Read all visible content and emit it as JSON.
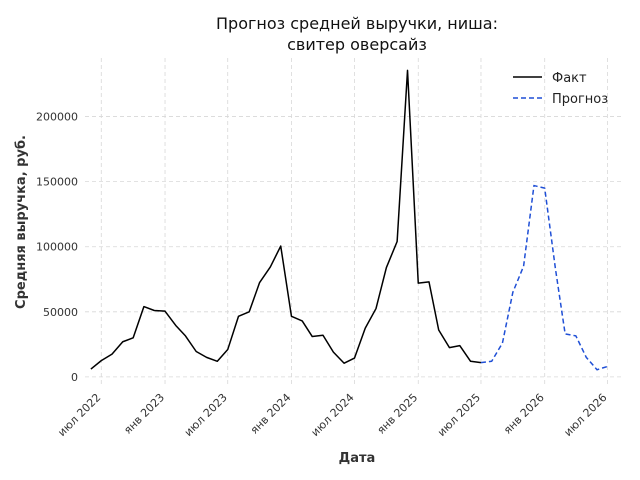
{
  "chart_data": {
    "type": "line",
    "title_line1": "Прогноз средней выручки, ниша:",
    "title_line2": "свитер оверсайз",
    "xlabel": "Дата",
    "ylabel": "Средняя выручка, руб.",
    "ylim": [
      -7000,
      245000
    ],
    "yticks": [
      0,
      50000,
      100000,
      150000,
      200000
    ],
    "xlim": [
      "2022-05-15",
      "2026-08-15"
    ],
    "xticks": [
      {
        "date": "2022-07-01",
        "label": "июл 2022"
      },
      {
        "date": "2023-01-01",
        "label": "янв 2023"
      },
      {
        "date": "2023-07-01",
        "label": "июл 2023"
      },
      {
        "date": "2024-01-01",
        "label": "янв 2024"
      },
      {
        "date": "2024-07-01",
        "label": "июл 2024"
      },
      {
        "date": "2025-01-01",
        "label": "янв 2025"
      },
      {
        "date": "2025-07-01",
        "label": "июл 2025"
      },
      {
        "date": "2026-01-01",
        "label": "янв 2026"
      },
      {
        "date": "2026-07-01",
        "label": "июл 2026"
      }
    ],
    "grid": true,
    "legend_position": "top-right",
    "series": [
      {
        "name": "Факт",
        "color": "#000000",
        "style": "solid",
        "points": [
          [
            "2022-06-01",
            6000
          ],
          [
            "2022-07-01",
            12500
          ],
          [
            "2022-08-01",
            17500
          ],
          [
            "2022-09-01",
            27000
          ],
          [
            "2022-10-01",
            30000
          ],
          [
            "2022-11-01",
            54000
          ],
          [
            "2022-12-01",
            51000
          ],
          [
            "2023-01-01",
            50500
          ],
          [
            "2023-02-01",
            39500
          ],
          [
            "2023-03-01",
            31500
          ],
          [
            "2023-04-01",
            19500
          ],
          [
            "2023-05-01",
            15000
          ],
          [
            "2023-06-01",
            12000
          ],
          [
            "2023-07-01",
            21000
          ],
          [
            "2023-08-01",
            46500
          ],
          [
            "2023-09-01",
            50000
          ],
          [
            "2023-10-01",
            72500
          ],
          [
            "2023-11-01",
            84500
          ],
          [
            "2023-12-01",
            100500
          ],
          [
            "2024-01-01",
            46500
          ],
          [
            "2024-02-01",
            43000
          ],
          [
            "2024-03-01",
            31000
          ],
          [
            "2024-04-01",
            32000
          ],
          [
            "2024-05-01",
            19000
          ],
          [
            "2024-06-01",
            10500
          ],
          [
            "2024-07-01",
            14500
          ],
          [
            "2024-08-01",
            37500
          ],
          [
            "2024-09-01",
            52500
          ],
          [
            "2024-10-01",
            84000
          ],
          [
            "2024-11-01",
            104000
          ],
          [
            "2024-12-01",
            235500
          ],
          [
            "2025-01-01",
            72000
          ],
          [
            "2025-02-01",
            73000
          ],
          [
            "2025-03-01",
            36000
          ],
          [
            "2025-04-01",
            22500
          ],
          [
            "2025-05-01",
            24000
          ],
          [
            "2025-06-01",
            12000
          ],
          [
            "2025-07-01",
            11000
          ]
        ]
      },
      {
        "name": "Прогноз",
        "color": "#1f4fd6",
        "style": "dashed",
        "points": [
          [
            "2025-07-01",
            11000
          ],
          [
            "2025-08-01",
            12000
          ],
          [
            "2025-09-01",
            26000
          ],
          [
            "2025-10-01",
            65000
          ],
          [
            "2025-11-01",
            85000
          ],
          [
            "2025-12-01",
            147000
          ],
          [
            "2026-01-01",
            145000
          ],
          [
            "2026-02-01",
            83000
          ],
          [
            "2026-03-01",
            33000
          ],
          [
            "2026-04-01",
            31500
          ],
          [
            "2026-05-01",
            15000
          ],
          [
            "2026-06-01",
            5500
          ],
          [
            "2026-07-01",
            8000
          ]
        ]
      }
    ]
  }
}
